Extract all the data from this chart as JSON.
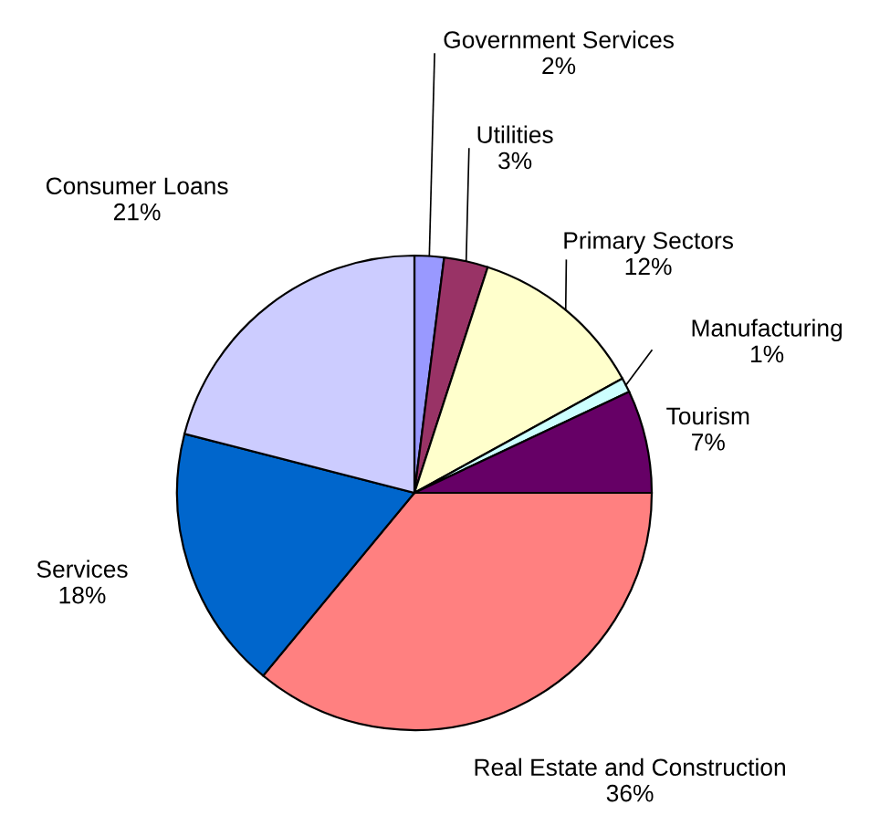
{
  "chart_data": {
    "type": "pie",
    "categories": [
      "Government Services",
      "Utilities",
      "Primary Sectors",
      "Manufacturing",
      "Tourism",
      "Real Estate and Construction",
      "Services",
      "Consumer Loans"
    ],
    "values": [
      2,
      3,
      12,
      1,
      7,
      36,
      18,
      21
    ],
    "value_labels": [
      "2%",
      "3%",
      "12%",
      "1%",
      "7%",
      "36%",
      "18%",
      "21%"
    ],
    "colors": [
      "#9999ff",
      "#993366",
      "#ffffcc",
      "#ccffff",
      "#660066",
      "#ff8080",
      "#0066cc",
      "#ccccff"
    ],
    "legend": false
  }
}
